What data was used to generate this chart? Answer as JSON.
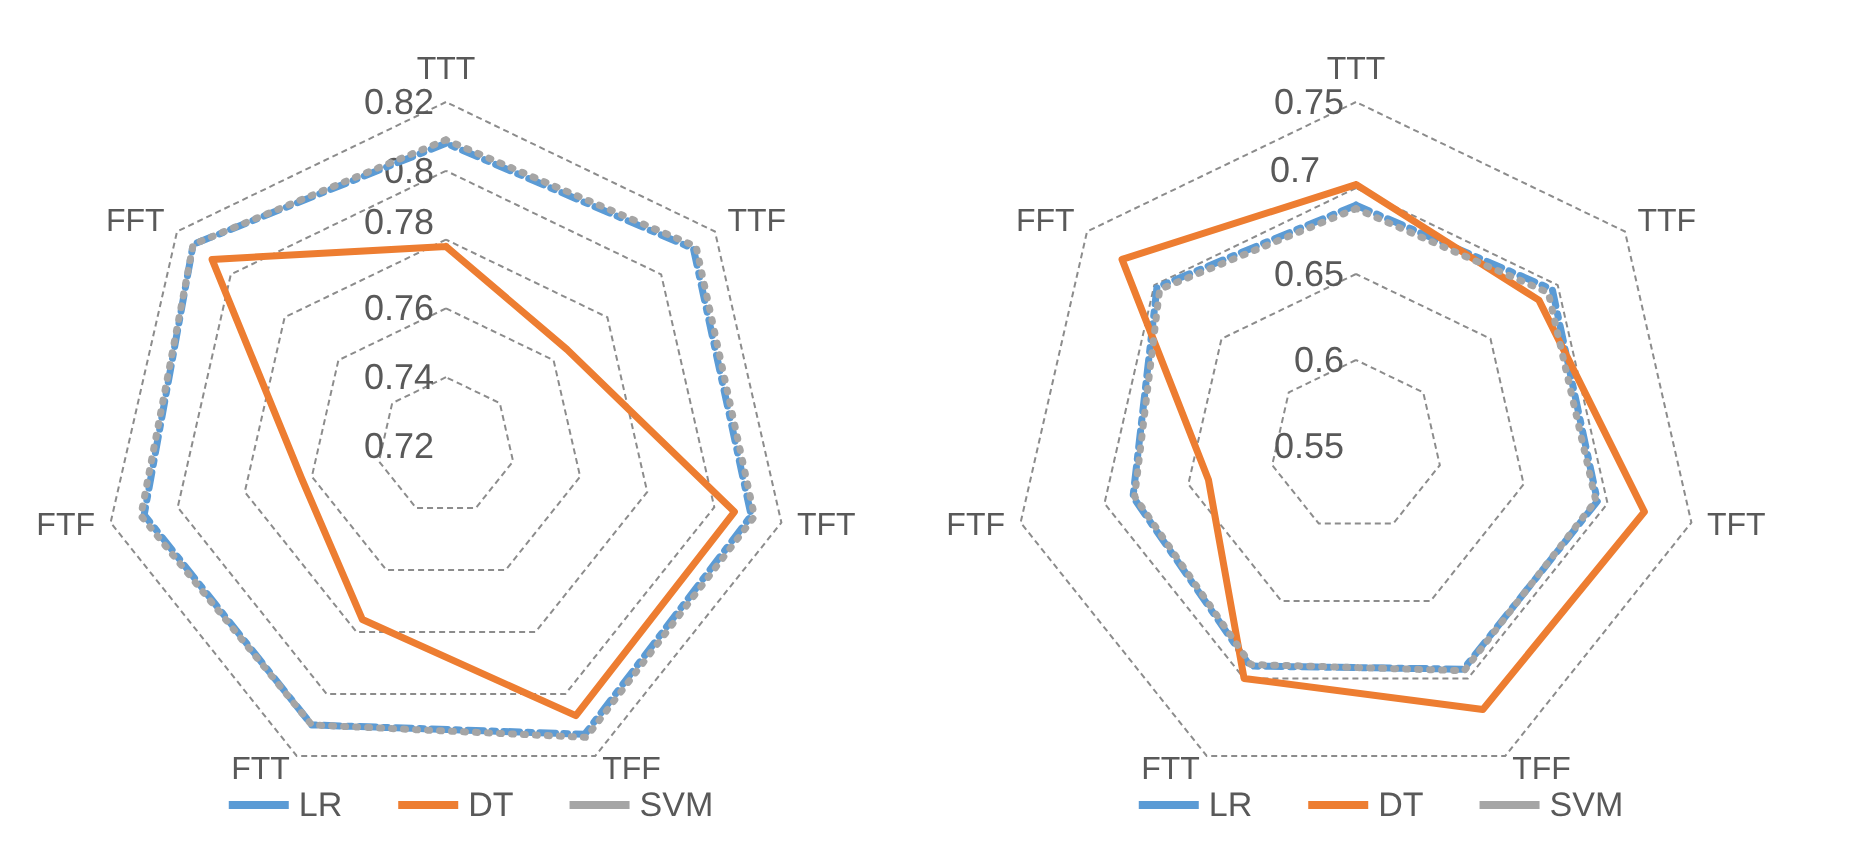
{
  "chart_data": [
    {
      "type": "radar",
      "categories": [
        "TTT",
        "TTF",
        "TFT",
        "TFF",
        "FTT",
        "FTF",
        "FFT"
      ],
      "ylim": [
        0.72,
        0.82
      ],
      "yticks": [
        0.72,
        0.74,
        0.76,
        0.78,
        0.8,
        0.82
      ],
      "grid": true,
      "legend": "bottom",
      "marker": "none",
      "series": [
        {
          "name": "LR",
          "color": "#5b9bd5",
          "line_style": "dashed",
          "values": [
            0.808,
            0.812,
            0.811,
            0.813,
            0.81,
            0.81,
            0.814
          ]
        },
        {
          "name": "DT",
          "color": "#ed7d31",
          "line_style": "solid",
          "values": [
            0.778,
            0.765,
            0.806,
            0.807,
            0.776,
            0.763,
            0.807
          ]
        },
        {
          "name": "SVM",
          "color": "#a5a5a5",
          "line_style": "dotted",
          "values": [
            0.809,
            0.813,
            0.812,
            0.814,
            0.81,
            0.811,
            0.814
          ]
        }
      ]
    },
    {
      "type": "radar",
      "categories": [
        "TTT",
        "TTF",
        "TFT",
        "TFF",
        "FTT",
        "FTF",
        "FFT"
      ],
      "ylim": [
        0.55,
        0.75
      ],
      "yticks": [
        0.55,
        0.6,
        0.65,
        0.7,
        0.75
      ],
      "grid": true,
      "legend": "bottom",
      "marker": "none",
      "series": [
        {
          "name": "LR",
          "color": "#5b9bd5",
          "line_style": "dashed",
          "values": [
            0.69,
            0.696,
            0.694,
            0.694,
            0.692,
            0.683,
            0.698
          ]
        },
        {
          "name": "DT",
          "color": "#ed7d31",
          "line_style": "solid",
          "values": [
            0.702,
            0.686,
            0.722,
            0.72,
            0.7,
            0.638,
            0.724
          ]
        },
        {
          "name": "SVM",
          "color": "#a5a5a5",
          "line_style": "dotted",
          "values": [
            0.688,
            0.693,
            0.693,
            0.695,
            0.691,
            0.682,
            0.696
          ]
        }
      ]
    }
  ]
}
